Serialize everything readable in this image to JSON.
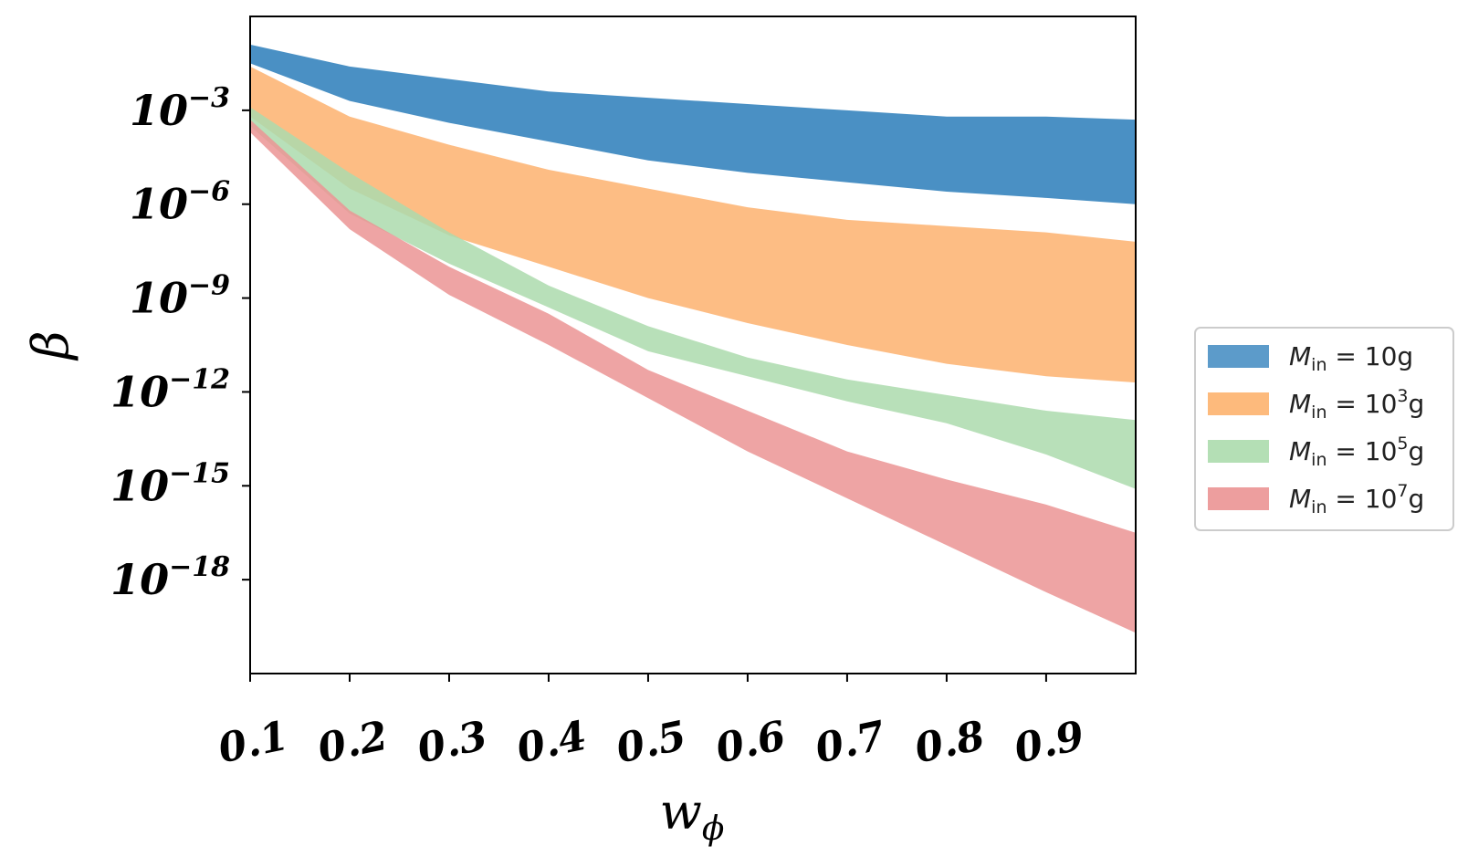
{
  "chart_data": {
    "type": "area",
    "xlabel": "w",
    "xlabel_sub": "ϕ",
    "ylabel": "β",
    "y_scale": "log",
    "xlim": [
      0.1,
      0.99
    ],
    "ylim_log10": [
      -21,
      0
    ],
    "xticks": [
      {
        "value": 0.1,
        "label": "0.1"
      },
      {
        "value": 0.2,
        "label": "0.2"
      },
      {
        "value": 0.3,
        "label": "0.3"
      },
      {
        "value": 0.4,
        "label": "0.4"
      },
      {
        "value": 0.5,
        "label": "0.5"
      },
      {
        "value": 0.6,
        "label": "0.6"
      },
      {
        "value": 0.7,
        "label": "0.7"
      },
      {
        "value": 0.8,
        "label": "0.8"
      },
      {
        "value": 0.9,
        "label": "0.9"
      }
    ],
    "yticks": [
      {
        "log10": -3,
        "base": "10",
        "exp": "−3"
      },
      {
        "log10": -6,
        "base": "10",
        "exp": "−6"
      },
      {
        "log10": -9,
        "base": "10",
        "exp": "−9"
      },
      {
        "log10": -12,
        "base": "10",
        "exp": "−12"
      },
      {
        "log10": -15,
        "base": "10",
        "exp": "−15"
      },
      {
        "log10": -18,
        "base": "10",
        "exp": "−18"
      }
    ],
    "legend_position": "center-right-outside",
    "x": [
      0.1,
      0.2,
      0.3,
      0.4,
      0.5,
      0.6,
      0.7,
      0.8,
      0.9,
      0.99
    ],
    "series": [
      {
        "name_prefix": "M",
        "name_sub": "in",
        "name_eq": " = 10",
        "name_sup": "",
        "name_unit": "g",
        "color": "#4a90c4",
        "upper_log10": [
          -0.9,
          -1.6,
          -2.0,
          -2.4,
          -2.6,
          -2.8,
          -3.0,
          -3.2,
          -3.2,
          -3.3
        ],
        "lower_log10": [
          -1.5,
          -2.7,
          -3.4,
          -4.0,
          -4.6,
          -5.0,
          -5.3,
          -5.6,
          -5.8,
          -6.0
        ]
      },
      {
        "name_prefix": "M",
        "name_sub": "in",
        "name_eq": " = 10",
        "name_sup": "3",
        "name_unit": "g",
        "color": "#fdb26e",
        "upper_log10": [
          -1.6,
          -3.2,
          -4.1,
          -4.9,
          -5.5,
          -6.1,
          -6.5,
          -6.7,
          -6.9,
          -7.2
        ],
        "lower_log10": [
          -3.2,
          -5.5,
          -7.0,
          -8.0,
          -9.0,
          -9.8,
          -10.5,
          -11.1,
          -11.5,
          -11.7
        ]
      },
      {
        "name_prefix": "M",
        "name_sub": "in",
        "name_eq": " = 10",
        "name_sup": "5",
        "name_unit": "g",
        "color": "#acdbad",
        "upper_log10": [
          -2.9,
          -5.0,
          -6.9,
          -8.6,
          -9.9,
          -10.9,
          -11.6,
          -12.1,
          -12.6,
          -12.9
        ],
        "lower_log10": [
          -3.5,
          -6.3,
          -7.9,
          -9.3,
          -10.7,
          -11.5,
          -12.3,
          -13.0,
          -14.0,
          -15.1
        ]
      },
      {
        "name_prefix": "M",
        "name_sub": "in",
        "name_eq": " = 10",
        "name_sup": "7",
        "name_unit": "g",
        "color": "#eb9494",
        "upper_log10": [
          -3.3,
          -6.2,
          -8.0,
          -9.5,
          -11.3,
          -12.6,
          -13.9,
          -14.8,
          -15.6,
          -16.5
        ],
        "lower_log10": [
          -3.7,
          -6.8,
          -8.9,
          -10.5,
          -12.2,
          -13.9,
          -15.4,
          -16.9,
          -18.4,
          -19.7
        ]
      }
    ]
  }
}
